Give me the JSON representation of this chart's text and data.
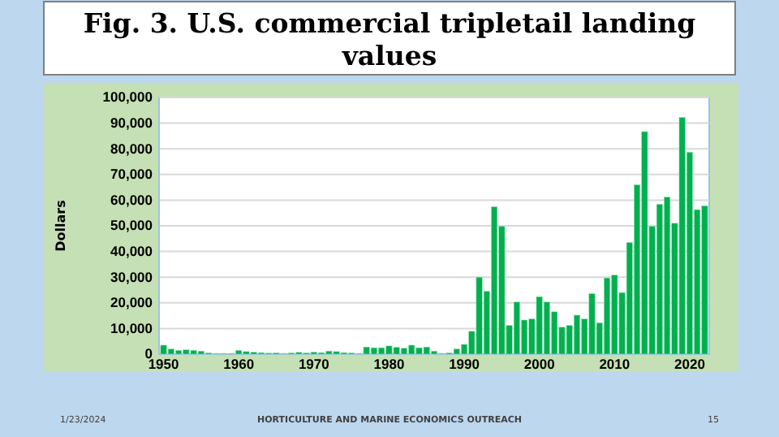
{
  "chart_data": {
    "type": "bar",
    "title": "Fig. 3. U.S. commercial tripletail landing values",
    "ylabel": "Dollars",
    "annotations": [
      "1/23/2024",
      "HORTICULTURE AND MARINE ECONOMICS OUTREACH",
      "15"
    ],
    "x": [
      1950,
      1951,
      1952,
      1953,
      1954,
      1955,
      1956,
      1957,
      1958,
      1959,
      1960,
      1961,
      1962,
      1963,
      1964,
      1965,
      1966,
      1967,
      1968,
      1969,
      1970,
      1971,
      1972,
      1973,
      1974,
      1975,
      1976,
      1977,
      1978,
      1979,
      1980,
      1981,
      1982,
      1983,
      1984,
      1985,
      1986,
      1987,
      1988,
      1989,
      1990,
      1991,
      1992,
      1993,
      1994,
      1995,
      1996,
      1997,
      1998,
      1999,
      2000,
      2001,
      2002,
      2003,
      2004,
      2005,
      2006,
      2007,
      2008,
      2009,
      2010,
      2011,
      2012,
      2013,
      2014,
      2015,
      2016,
      2017,
      2018,
      2019,
      2020,
      2021,
      2022
    ],
    "values": [
      3500,
      2000,
      1500,
      1700,
      1500,
      1200,
      500,
      300,
      300,
      300,
      1500,
      1000,
      800,
      600,
      400,
      500,
      300,
      500,
      700,
      500,
      800,
      600,
      1200,
      1000,
      600,
      500,
      300,
      2800,
      2500,
      2500,
      3200,
      2700,
      2300,
      3500,
      2500,
      2800,
      1200,
      300,
      500,
      2000,
      3800,
      8900,
      30000,
      24500,
      57400,
      49800,
      11200,
      20300,
      13300,
      13700,
      22400,
      20300,
      16500,
      10500,
      11200,
      15200,
      13700,
      23600,
      12200,
      29700,
      30800,
      24000,
      43500,
      66000,
      86700,
      49800,
      58400,
      61200,
      51000,
      92200,
      78700,
      56300,
      57800
    ],
    "color": "#00b050",
    "xlim": [
      1949.4,
      2022.6
    ],
    "xticks": [
      1950,
      1960,
      1970,
      1980,
      1990,
      2000,
      2010,
      2020
    ],
    "ylim": [
      0,
      100000
    ],
    "yticks": [
      {
        "value": 0,
        "label": "0"
      },
      {
        "value": 10000,
        "label": "10,000"
      },
      {
        "value": 20000,
        "label": "20,000"
      },
      {
        "value": 30000,
        "label": "30,000"
      },
      {
        "value": 40000,
        "label": "40,000"
      },
      {
        "value": 50000,
        "label": "50,000"
      },
      {
        "value": 60000,
        "label": "60,000"
      },
      {
        "value": 70000,
        "label": "70,000"
      },
      {
        "value": 80000,
        "label": "80,000"
      },
      {
        "value": 90000,
        "label": "90,000"
      },
      {
        "value": 100000,
        "label": "100,000"
      }
    ],
    "grid": "y"
  }
}
